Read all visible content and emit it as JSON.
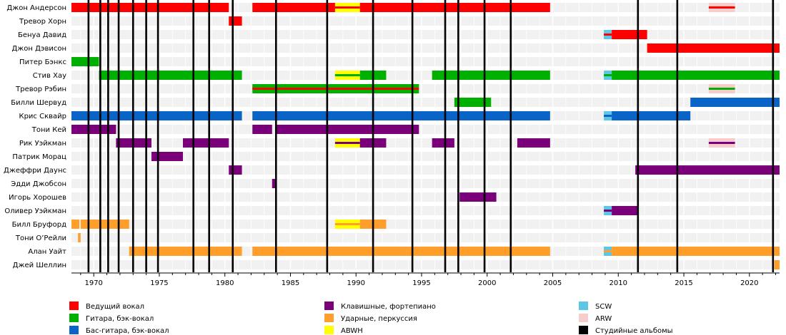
{
  "chart_data": {
    "type": "timeline",
    "title": "",
    "xlabel": "",
    "ylabel": "",
    "xlim": [
      1968.3,
      2022.3
    ],
    "grid": true,
    "legend_position": "bottom",
    "x_ticks": [
      1970,
      1975,
      1980,
      1985,
      1990,
      1995,
      2000,
      2005,
      2010,
      2015,
      2020
    ],
    "roles": [
      {
        "key": "vocals",
        "label": "Ведущий вокал",
        "color": "#ff0000"
      },
      {
        "key": "guitar",
        "label": "Гитара, бэк-вокал",
        "color": "#00b000"
      },
      {
        "key": "bass",
        "label": "Бас-гитара, бэк-вокал",
        "color": "#0a64c8"
      },
      {
        "key": "keys",
        "label": "Клавишные, фортепиано",
        "color": "#7a007a"
      },
      {
        "key": "drums",
        "label": "Ударные, перкуссия",
        "color": "#ff9e2a"
      },
      {
        "key": "abwh",
        "label": "ABWH",
        "color": "#ffff00"
      },
      {
        "key": "scw",
        "label": "SCW",
        "color": "#5bc6e6"
      },
      {
        "key": "arw",
        "label": "ARW",
        "color": "#f8cccc"
      },
      {
        "key": "albums",
        "label": "Студийные альбомы",
        "color": "#000000"
      }
    ],
    "members": [
      {
        "name": "Джон Андерсон",
        "bars": [
          {
            "role": "vocals",
            "start": 1968.3,
            "end": 1980.3
          },
          {
            "role": "vocals",
            "start": 1982.1,
            "end": 2004.8
          },
          {
            "role": "abwh",
            "start": 1988.4,
            "end": 1990.3,
            "inner": "vocals"
          },
          {
            "role": "vocals",
            "start": 2016.9,
            "end": 2018.9,
            "layer": "arw",
            "inner": "vocals"
          }
        ]
      },
      {
        "name": "Тревор Хорн",
        "bars": [
          {
            "role": "vocals",
            "start": 1980.3,
            "end": 1981.3
          }
        ]
      },
      {
        "name": "Бенуа Давид",
        "bars": [
          {
            "role": "scw",
            "start": 2008.9,
            "end": 2009.5,
            "inner": "vocals"
          },
          {
            "role": "vocals",
            "start": 2009.5,
            "end": 2012.2
          }
        ]
      },
      {
        "name": "Джон Дэвисон",
        "bars": [
          {
            "role": "vocals",
            "start": 2012.2,
            "end": 2022.3
          }
        ]
      },
      {
        "name": "Питер Бэнкс",
        "bars": [
          {
            "role": "guitar",
            "start": 1968.3,
            "end": 1970.4
          }
        ]
      },
      {
        "name": "Стив Хау",
        "bars": [
          {
            "role": "guitar",
            "start": 1970.4,
            "end": 1981.3
          },
          {
            "role": "abwh",
            "start": 1988.4,
            "end": 1990.3,
            "inner": "guitar"
          },
          {
            "role": "guitar",
            "start": 1990.3,
            "end": 1992.3
          },
          {
            "role": "guitar",
            "start": 1995.8,
            "end": 2004.8
          },
          {
            "role": "scw",
            "start": 2008.9,
            "end": 2009.5,
            "inner": "guitar"
          },
          {
            "role": "guitar",
            "start": 2009.5,
            "end": 2022.3
          }
        ]
      },
      {
        "name": "Тревор Рэбин",
        "bars": [
          {
            "role": "guitar",
            "start": 1982.1,
            "end": 1994.8,
            "inner": "vocals"
          },
          {
            "role": "guitar",
            "start": 2016.9,
            "end": 2018.9,
            "layer": "arw",
            "inner": "guitar"
          }
        ]
      },
      {
        "name": "Билли Шервуд",
        "bars": [
          {
            "role": "guitar",
            "start": 1997.5,
            "end": 2000.3
          },
          {
            "role": "bass",
            "start": 2015.5,
            "end": 2022.3
          }
        ]
      },
      {
        "name": "Крис Сквайр",
        "bars": [
          {
            "role": "bass",
            "start": 1968.3,
            "end": 1981.3
          },
          {
            "role": "bass",
            "start": 1982.1,
            "end": 2004.8
          },
          {
            "role": "scw",
            "start": 2008.9,
            "end": 2009.5,
            "inner": "bass"
          },
          {
            "role": "bass",
            "start": 2009.5,
            "end": 2015.5
          }
        ]
      },
      {
        "name": "Тони Кей",
        "bars": [
          {
            "role": "keys",
            "start": 1968.3,
            "end": 1971.7
          },
          {
            "role": "keys",
            "start": 1982.1,
            "end": 1983.6
          },
          {
            "role": "keys",
            "start": 1983.9,
            "end": 1994.8
          }
        ]
      },
      {
        "name": "Рик Уэйкман",
        "bars": [
          {
            "role": "keys",
            "start": 1971.7,
            "end": 1974.4
          },
          {
            "role": "keys",
            "start": 1976.8,
            "end": 1980.3
          },
          {
            "role": "abwh",
            "start": 1988.4,
            "end": 1990.3,
            "inner": "keys"
          },
          {
            "role": "keys",
            "start": 1990.3,
            "end": 1992.3
          },
          {
            "role": "keys",
            "start": 1995.8,
            "end": 1997.5
          },
          {
            "role": "keys",
            "start": 2002.3,
            "end": 2004.8
          },
          {
            "role": "keys",
            "start": 2016.9,
            "end": 2018.9,
            "layer": "arw",
            "inner": "keys"
          }
        ]
      },
      {
        "name": "Патрик Морац",
        "bars": [
          {
            "role": "keys",
            "start": 1974.4,
            "end": 1976.8
          }
        ]
      },
      {
        "name": "Джеффри Даунс",
        "bars": [
          {
            "role": "keys",
            "start": 1980.3,
            "end": 1981.3
          },
          {
            "role": "keys",
            "start": 2011.3,
            "end": 2022.3
          }
        ]
      },
      {
        "name": "Эдди Джобсон",
        "bars": [
          {
            "role": "keys",
            "start": 1983.6,
            "end": 1983.9
          }
        ]
      },
      {
        "name": "Игорь Хорошев",
        "bars": [
          {
            "role": "keys",
            "start": 1997.9,
            "end": 2000.7
          }
        ]
      },
      {
        "name": "Оливер Уэйкман",
        "bars": [
          {
            "role": "scw",
            "start": 2008.9,
            "end": 2009.5,
            "inner": "keys"
          },
          {
            "role": "keys",
            "start": 2009.5,
            "end": 2011.5
          }
        ]
      },
      {
        "name": "Билл Бруфорд",
        "bars": [
          {
            "role": "drums",
            "start": 1968.3,
            "end": 1968.9
          },
          {
            "role": "drums",
            "start": 1969.0,
            "end": 1972.7
          },
          {
            "role": "abwh",
            "start": 1988.4,
            "end": 1990.3,
            "inner": "drums"
          },
          {
            "role": "drums",
            "start": 1990.3,
            "end": 1992.3
          }
        ]
      },
      {
        "name": "Тони О’Рейли",
        "bars": [
          {
            "role": "drums",
            "start": 1968.8,
            "end": 1969.0
          }
        ]
      },
      {
        "name": "Алан Уайт",
        "bars": [
          {
            "role": "drums",
            "start": 1972.7,
            "end": 1981.3
          },
          {
            "role": "drums",
            "start": 1982.1,
            "end": 2004.8
          },
          {
            "role": "scw",
            "start": 2008.9,
            "end": 2009.5,
            "inner": "drums"
          },
          {
            "role": "drums",
            "start": 2009.5,
            "end": 2022.3
          }
        ]
      },
      {
        "name": "Джей Шеллин",
        "bars": [
          {
            "role": "drums",
            "start": 2021.9,
            "end": 2022.3
          }
        ]
      }
    ],
    "albums": [
      1969.6,
      1970.5,
      1971.1,
      1971.9,
      1973.0,
      1974.0,
      1974.9,
      1977.6,
      1978.8,
      1980.6,
      1983.9,
      1987.8,
      1991.3,
      1994.3,
      1996.8,
      1997.8,
      1999.8,
      2001.8,
      2011.5,
      2014.5,
      2021.8
    ]
  }
}
